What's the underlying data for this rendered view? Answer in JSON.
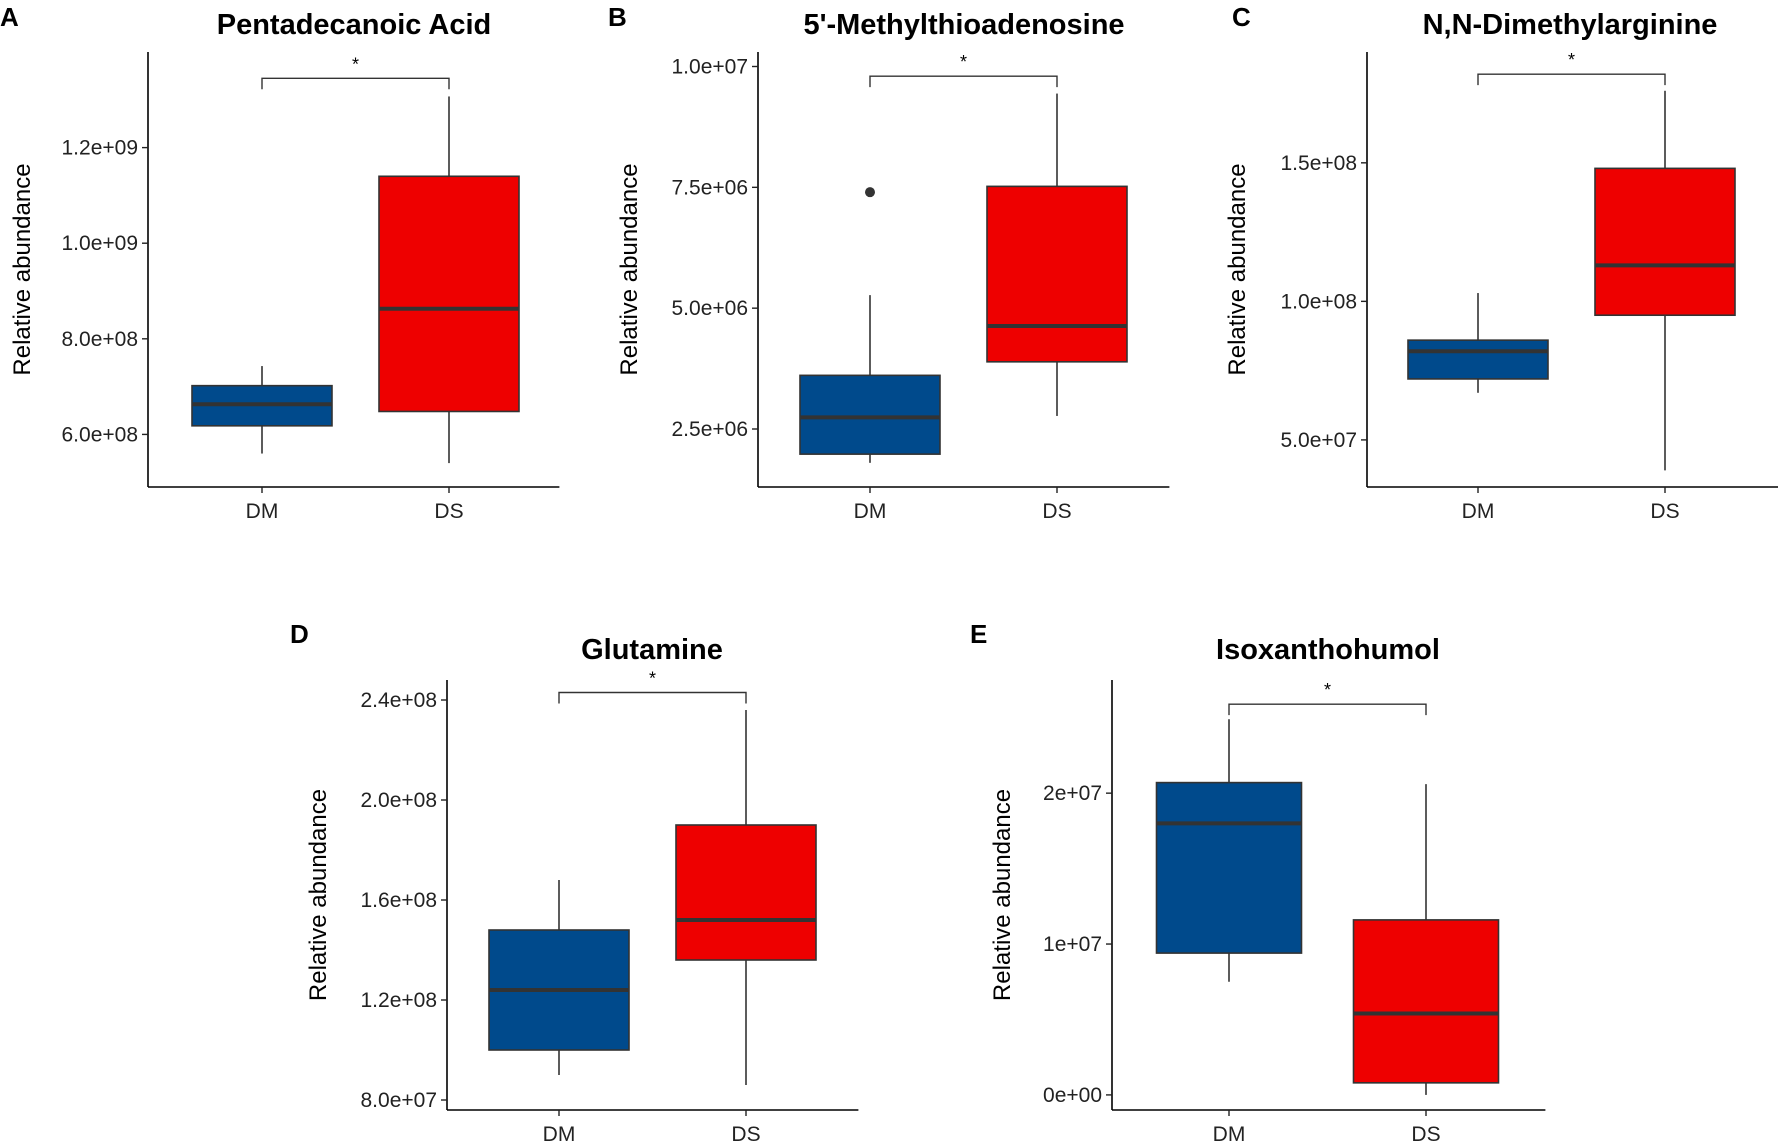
{
  "figure": {
    "colors": {
      "DM": "#004A8C",
      "DS": "#EE0000"
    }
  },
  "chart_data": [
    {
      "panel": "A",
      "title": "Pentadecanoic Acid",
      "type": "boxplot",
      "xlabel": "",
      "ylabel": "Relative abundance",
      "categories": [
        "DM",
        "DS"
      ],
      "ylim": [
        490000000,
        1400000000
      ],
      "yticks": [
        600000000,
        800000000,
        1000000000,
        1200000000
      ],
      "ytick_labels": [
        "6.0e+08",
        "8.0e+08",
        "1.0e+09",
        "1.2e+09"
      ],
      "boxes": [
        {
          "group": "DM",
          "min": 560000000,
          "q1": 618000000,
          "median": 663000000,
          "q3": 702000000,
          "max": 743000000,
          "outliers": []
        },
        {
          "group": "DS",
          "min": 540000000,
          "q1": 648000000,
          "median": 863000000,
          "q3": 1140000000,
          "max": 1307000000,
          "outliers": []
        }
      ],
      "significance": {
        "label": "*",
        "y": 1345000000
      }
    },
    {
      "panel": "B",
      "title": "5'-Methylthioadenosine",
      "type": "boxplot",
      "xlabel": "",
      "ylabel": "Relative abundance",
      "categories": [
        "DM",
        "DS"
      ],
      "ylim": [
        1300000,
        10300000
      ],
      "yticks": [
        2500000,
        5000000,
        7500000,
        10000000
      ],
      "ytick_labels": [
        "2.5e+06",
        "5.0e+06",
        "7.5e+06",
        "1.0e+07"
      ],
      "boxes": [
        {
          "group": "DM",
          "min": 1800000,
          "q1": 1980000,
          "median": 2740000,
          "q3": 3610000,
          "max": 5270000,
          "outliers": [
            7400000
          ]
        },
        {
          "group": "DS",
          "min": 2770000,
          "q1": 3890000,
          "median": 4630000,
          "q3": 7520000,
          "max": 9440000,
          "outliers": []
        }
      ],
      "significance": {
        "label": "*",
        "y": 9800000
      }
    },
    {
      "panel": "C",
      "title": "N,N-Dimethylarginine",
      "type": "boxplot",
      "xlabel": "",
      "ylabel": "Relative abundance",
      "categories": [
        "DM",
        "DS"
      ],
      "ylim": [
        33000000,
        190000000
      ],
      "yticks": [
        50000000,
        100000000,
        150000000
      ],
      "ytick_labels": [
        "5.0e+07",
        "1.0e+08",
        "1.5e+08"
      ],
      "boxes": [
        {
          "group": "DM",
          "min": 67000000,
          "q1": 72000000,
          "median": 82000000,
          "q3": 86000000,
          "max": 103000000,
          "outliers": []
        },
        {
          "group": "DS",
          "min": 39000000,
          "q1": 95000000,
          "median": 113000000,
          "q3": 148000000,
          "max": 176000000,
          "outliers": []
        }
      ],
      "significance": {
        "label": "*",
        "y": 182000000
      }
    },
    {
      "panel": "D",
      "title": "Glutamine",
      "type": "boxplot",
      "xlabel": "",
      "ylabel": "Relative abundance",
      "categories": [
        "DM",
        "DS"
      ],
      "ylim": [
        76000000,
        248000000
      ],
      "yticks": [
        80000000,
        120000000,
        160000000,
        200000000,
        240000000
      ],
      "ytick_labels": [
        "8.0e+07",
        "1.2e+08",
        "1.6e+08",
        "2.0e+08",
        "2.4e+08"
      ],
      "boxes": [
        {
          "group": "DM",
          "min": 90000000,
          "q1": 100000000,
          "median": 124000000,
          "q3": 148000000,
          "max": 168000000,
          "outliers": []
        },
        {
          "group": "DS",
          "min": 86000000,
          "q1": 136000000,
          "median": 152000000,
          "q3": 190000000,
          "max": 236000000,
          "outliers": []
        }
      ],
      "significance": {
        "label": "*",
        "y": 243000000
      }
    },
    {
      "panel": "E",
      "title": "Isoxanthohumol",
      "type": "boxplot",
      "xlabel": "",
      "ylabel": "Relative abundance",
      "categories": [
        "DM",
        "DS"
      ],
      "ylim": [
        -1000000,
        27500000
      ],
      "yticks": [
        0,
        10000000,
        20000000
      ],
      "ytick_labels": [
        "0e+00",
        "1e+07",
        "2e+07"
      ],
      "boxes": [
        {
          "group": "DM",
          "min": 7500000,
          "q1": 9400000,
          "median": 18000000,
          "q3": 20700000,
          "max": 24900000,
          "outliers": []
        },
        {
          "group": "DS",
          "min": 0,
          "q1": 800000,
          "median": 5400000,
          "q3": 11600000,
          "max": 20600000,
          "outliers": []
        }
      ],
      "significance": {
        "label": "*",
        "y": 25900000
      }
    }
  ]
}
